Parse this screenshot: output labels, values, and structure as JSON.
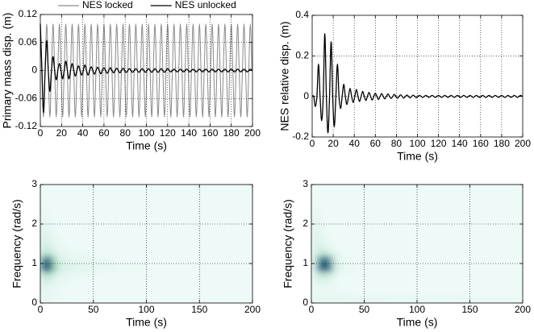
{
  "chart_data": [
    {
      "type": "line",
      "xlabel": "Time (s)",
      "ylabel": "Primary mass disp. (m)",
      "legend": "top",
      "grid": true,
      "xlim": [
        0,
        200
      ],
      "ylim": [
        -0.12,
        0.12
      ],
      "xticks": [
        0,
        20,
        40,
        60,
        80,
        100,
        120,
        140,
        160,
        180,
        200
      ],
      "yticks": [
        -0.12,
        -0.06,
        0,
        0.06,
        0.12
      ],
      "x": [
        0,
        1.5,
        3,
        4.5,
        6,
        7.5,
        9,
        10.5,
        12,
        13.5,
        15,
        16.5,
        18,
        19.5,
        21,
        22.5,
        24,
        25.5,
        27,
        28.5,
        30,
        31.5,
        33,
        34.5,
        36,
        37.5,
        39,
        40.5,
        42,
        43.5,
        45,
        46.5,
        48,
        49.5,
        51,
        52.5,
        54,
        55.5,
        57,
        58.5,
        60,
        61.5,
        63,
        64.5,
        66,
        67.5,
        69,
        70.5,
        72,
        73.5,
        75,
        76.5,
        78,
        79.5,
        81,
        82.5,
        84,
        85.5,
        87,
        88.5,
        90,
        91.5,
        93,
        94.5,
        96,
        97.5,
        99,
        100.5,
        102,
        103.5,
        105,
        106.5,
        108,
        109.5,
        111,
        112.5,
        114,
        115.5,
        117,
        118.5,
        120,
        121.5,
        123,
        124.5,
        126,
        127.5,
        129,
        130.5,
        132,
        133.5,
        135,
        136.5,
        138,
        139.5,
        141,
        142.5,
        144,
        145.5,
        147,
        148.5,
        150,
        151.5,
        153,
        154.5,
        156,
        157.5,
        159,
        160.5,
        162,
        163.5,
        165,
        166.5,
        168,
        169.5,
        171,
        172.5,
        174,
        175.5,
        177,
        178.5,
        180,
        181.5,
        183,
        184.5,
        186,
        187.5,
        189,
        190.5,
        192,
        193.5,
        195,
        196.5,
        198,
        199.5
      ],
      "series": [
        {
          "name": "NES locked",
          "color": "#8a8a8a",
          "values": [
            0.1,
            0,
            -0.1,
            0,
            0.1,
            0,
            -0.1,
            0,
            0.1,
            0,
            -0.1,
            0,
            0.1,
            0,
            -0.1,
            0,
            0.1,
            0,
            -0.1,
            0,
            0.1,
            0,
            -0.1,
            0,
            0.1,
            0,
            -0.1,
            0,
            0.1,
            0,
            -0.1,
            0,
            0.1,
            0,
            -0.1,
            0,
            0.1,
            0,
            -0.1,
            0,
            0.1,
            0,
            -0.1,
            0,
            0.1,
            0,
            -0.1,
            0,
            0.1,
            0,
            -0.1,
            0,
            0.1,
            0,
            -0.1,
            0,
            0.1,
            0,
            -0.1,
            0,
            0.1,
            0,
            -0.1,
            0,
            0.1,
            0,
            -0.1,
            0,
            0.1,
            0,
            -0.1,
            0,
            0.1,
            0,
            -0.1,
            0,
            0.1,
            0,
            -0.1,
            0,
            0.1,
            0,
            -0.1,
            0,
            0.1,
            0,
            -0.1,
            0,
            0.1,
            0,
            -0.1,
            0,
            0.1,
            0,
            -0.1,
            0,
            0.1,
            0,
            -0.1,
            0,
            0.1,
            0,
            -0.1,
            0,
            0.1,
            0,
            -0.1,
            0,
            0.1,
            0,
            -0.1,
            0,
            0.1,
            0,
            -0.1,
            0,
            0.1,
            0,
            -0.1,
            0,
            0.1,
            0,
            -0.1,
            0,
            0.1,
            0,
            -0.1,
            0,
            0.1,
            0,
            -0.1,
            0,
            0.1,
            0
          ]
        },
        {
          "name": "NES unlocked",
          "color": "#000000",
          "values": [
            0.1,
            0,
            -0.09,
            0,
            0.065,
            0,
            -0.045,
            0,
            0.03,
            0,
            -0.02,
            0,
            0.015,
            0,
            -0.018,
            0,
            0.02,
            0,
            -0.018,
            0,
            0.015,
            0,
            -0.012,
            0,
            0.01,
            0,
            -0.01,
            0,
            0.012,
            0,
            -0.01,
            0,
            0.008,
            0,
            -0.008,
            0,
            0.007,
            0,
            -0.007,
            0,
            0.006,
            0,
            -0.006,
            0,
            0.006,
            0,
            -0.005,
            0,
            0.005,
            0,
            -0.005,
            0,
            0.005,
            0,
            -0.004,
            0,
            0.004,
            0,
            -0.004,
            0,
            0.004,
            0,
            -0.004,
            0,
            0.004,
            0,
            -0.004,
            0,
            0.004,
            0,
            -0.004,
            0,
            0.004,
            0,
            -0.004,
            0,
            0.004,
            0,
            -0.004,
            0,
            0.004,
            0,
            -0.003,
            0,
            0.003,
            0,
            -0.003,
            0,
            0.003,
            0,
            -0.003,
            0,
            0.003,
            0,
            -0.003,
            0,
            0.003,
            0,
            -0.003,
            0,
            0.003,
            0,
            -0.003,
            0,
            0.003,
            0,
            -0.003,
            0,
            0.003,
            0,
            -0.003,
            0,
            0.003,
            0,
            -0.003,
            0,
            0.003,
            0,
            -0.003,
            0,
            0.003,
            0,
            -0.003,
            0,
            0.003,
            0,
            -0.003,
            0,
            0.003,
            0,
            -0.003,
            0,
            0.003,
            0
          ]
        }
      ]
    },
    {
      "type": "line",
      "xlabel": "Time (s)",
      "ylabel": "NES relative disp. (m)",
      "grid": true,
      "xlim": [
        0,
        200
      ],
      "ylim": [
        -0.2,
        0.4
      ],
      "xticks": [
        0,
        20,
        40,
        60,
        80,
        100,
        120,
        140,
        160,
        180,
        200
      ],
      "yticks": [
        -0.2,
        0,
        0.2,
        0.4
      ],
      "x": [
        0,
        1.5,
        3,
        4.5,
        6,
        7.5,
        9,
        10.5,
        12,
        13.5,
        15,
        16.5,
        18,
        19.5,
        21,
        22.5,
        24,
        25.5,
        27,
        28.5,
        30,
        31.5,
        33,
        34.5,
        36,
        37.5,
        39,
        40.5,
        42,
        43.5,
        45,
        46.5,
        48,
        49.5,
        51,
        52.5,
        54,
        55.5,
        57,
        58.5,
        60,
        61.5,
        63,
        64.5,
        66,
        67.5,
        69,
        70.5,
        72,
        73.5,
        75,
        76.5,
        78,
        79.5,
        81,
        82.5,
        84,
        85.5,
        87,
        88.5,
        90,
        91.5,
        93,
        94.5,
        96,
        97.5,
        99,
        100.5,
        102,
        103.5,
        105,
        106.5,
        108,
        109.5,
        111,
        112.5,
        114,
        115.5,
        117,
        118.5,
        120,
        121.5,
        123,
        124.5,
        126,
        127.5,
        129,
        130.5,
        132,
        133.5,
        135,
        136.5,
        138,
        139.5,
        141,
        142.5,
        144,
        145.5,
        147,
        148.5,
        150,
        151.5,
        153,
        154.5,
        156,
        157.5,
        159,
        160.5,
        162,
        163.5,
        165,
        166.5,
        168,
        169.5,
        171,
        172.5,
        174,
        175.5,
        177,
        178.5,
        180,
        181.5,
        183,
        184.5,
        186,
        187.5,
        189,
        190.5,
        192,
        193.5,
        195,
        196.5,
        198,
        199.5
      ],
      "series": [
        {
          "color": "#000000",
          "values": [
            0,
            0,
            -0.05,
            0,
            0.16,
            0,
            -0.12,
            0,
            0.31,
            0,
            -0.18,
            0,
            0.27,
            0,
            -0.15,
            0,
            0.16,
            0,
            -0.06,
            0,
            0.06,
            0,
            -0.04,
            0,
            0.04,
            0,
            -0.03,
            0,
            0.035,
            0,
            -0.025,
            0,
            0.025,
            0,
            -0.02,
            0,
            0.02,
            0,
            -0.018,
            0,
            0.016,
            0,
            -0.015,
            0,
            0.014,
            0,
            -0.012,
            0,
            0.012,
            0,
            -0.01,
            0,
            0.01,
            0,
            -0.009,
            0,
            0.008,
            0,
            -0.008,
            0,
            0.007,
            0,
            -0.007,
            0,
            0.006,
            0,
            -0.006,
            0,
            0.005,
            0,
            -0.005,
            0,
            0.005,
            0,
            -0.005,
            0,
            0.005,
            0,
            -0.005,
            0,
            0.005,
            0,
            -0.005,
            0,
            0.005,
            0,
            -0.005,
            0,
            0.005,
            0,
            -0.005,
            0,
            0.005,
            0,
            -0.005,
            0,
            0.005,
            0,
            -0.005,
            0,
            0.005,
            0,
            -0.005,
            0,
            0.005,
            0,
            -0.005,
            0,
            0.005,
            0,
            -0.005,
            0,
            0.005,
            0,
            -0.005,
            0,
            0.005,
            0,
            -0.005,
            0,
            0.005,
            0,
            -0.005,
            0,
            0.005,
            0,
            -0.005,
            0,
            0.005,
            0,
            -0.005,
            0,
            0.005,
            0
          ]
        }
      ]
    },
    {
      "type": "heatmap",
      "xlabel": "Time (s)",
      "ylabel": "Frequency (rad/s)",
      "grid": true,
      "xlim": [
        0,
        200
      ],
      "ylim": [
        0,
        3
      ],
      "xticks": [
        0,
        50,
        100,
        150,
        200
      ],
      "yticks": [
        0,
        1,
        2,
        3
      ],
      "colorscale": [
        "#eefaf8",
        "#c5e8d8",
        "#7cc0aa",
        "#2f6f8f",
        "#0b1e50"
      ],
      "x": [
        2.5,
        7.5,
        12.5,
        17.5,
        22.5,
        27.5,
        35,
        45,
        60,
        80,
        115,
        165
      ],
      "y": [
        0.1,
        0.3,
        0.5,
        0.7,
        0.9,
        1.1,
        1.3,
        1.5,
        1.7,
        1.9,
        2.1,
        2.3,
        2.5,
        2.7,
        2.9
      ],
      "z": [
        [
          0.05,
          0.05,
          0.03,
          0.02,
          0.01,
          0,
          0,
          0,
          0,
          0,
          0,
          0
        ],
        [
          0.05,
          0.05,
          0.03,
          0.02,
          0.01,
          0,
          0,
          0,
          0,
          0,
          0,
          0
        ],
        [
          0.1,
          0.1,
          0.05,
          0.03,
          0.02,
          0.01,
          0,
          0,
          0,
          0,
          0,
          0
        ],
        [
          0.25,
          0.3,
          0.15,
          0.08,
          0.05,
          0.04,
          0.03,
          0.02,
          0,
          0,
          0,
          0
        ],
        [
          0.7,
          0.9,
          0.5,
          0.2,
          0.12,
          0.1,
          0.08,
          0.06,
          0.04,
          0.02,
          0,
          0
        ],
        [
          0.6,
          0.8,
          0.4,
          0.15,
          0.1,
          0.08,
          0.06,
          0.05,
          0.03,
          0.01,
          0,
          0
        ],
        [
          0.25,
          0.25,
          0.12,
          0.06,
          0.04,
          0.03,
          0.02,
          0.01,
          0,
          0,
          0,
          0
        ],
        [
          0.15,
          0.12,
          0.06,
          0.03,
          0.02,
          0,
          0,
          0,
          0,
          0,
          0,
          0
        ],
        [
          0.12,
          0.08,
          0.04,
          0.02,
          0,
          0,
          0,
          0,
          0,
          0,
          0,
          0
        ],
        [
          0.08,
          0.05,
          0.02,
          0,
          0,
          0,
          0,
          0,
          0,
          0,
          0,
          0
        ],
        [
          0.05,
          0.03,
          0.01,
          0,
          0,
          0,
          0,
          0,
          0,
          0,
          0,
          0
        ],
        [
          0.03,
          0.02,
          0,
          0,
          0,
          0,
          0,
          0,
          0,
          0,
          0,
          0
        ],
        [
          0.02,
          0.01,
          0,
          0,
          0,
          0,
          0,
          0,
          0,
          0,
          0,
          0
        ],
        [
          0,
          0,
          0,
          0,
          0,
          0,
          0,
          0,
          0,
          0,
          0,
          0
        ],
        [
          0,
          0,
          0,
          0,
          0,
          0,
          0,
          0,
          0,
          0,
          0,
          0
        ]
      ]
    },
    {
      "type": "heatmap",
      "xlabel": "Time (s)",
      "ylabel": "Frequency (rad/s)",
      "grid": true,
      "xlim": [
        0,
        200
      ],
      "ylim": [
        0,
        3
      ],
      "xticks": [
        0,
        50,
        100,
        150,
        200
      ],
      "yticks": [
        0,
        1,
        2,
        3
      ],
      "colorscale": [
        "#eefaf8",
        "#c5e8d8",
        "#7cc0aa",
        "#2f6f8f",
        "#0b1e50"
      ],
      "x": [
        2.5,
        7.5,
        12.5,
        17.5,
        22.5,
        27.5,
        35,
        45,
        60,
        80,
        115,
        165
      ],
      "y": [
        0.1,
        0.3,
        0.5,
        0.7,
        0.9,
        1.1,
        1.3,
        1.5,
        1.7,
        1.9,
        2.1,
        2.3,
        2.5,
        2.7,
        2.9
      ],
      "z": [
        [
          0.03,
          0.05,
          0.06,
          0.06,
          0.06,
          0.06,
          0.05,
          0.05,
          0.05,
          0.04,
          0.04,
          0.03
        ],
        [
          0.02,
          0.03,
          0.03,
          0.02,
          0.02,
          0.01,
          0.01,
          0,
          0,
          0,
          0,
          0
        ],
        [
          0.04,
          0.06,
          0.06,
          0.04,
          0.02,
          0.01,
          0,
          0,
          0,
          0,
          0,
          0
        ],
        [
          0.08,
          0.2,
          0.25,
          0.15,
          0.05,
          0.02,
          0.01,
          0,
          0,
          0,
          0,
          0
        ],
        [
          0.15,
          0.7,
          0.9,
          0.7,
          0.2,
          0.06,
          0.03,
          0.01,
          0,
          0,
          0,
          0
        ],
        [
          0.12,
          0.6,
          0.8,
          0.6,
          0.15,
          0.05,
          0.02,
          0.01,
          0,
          0,
          0,
          0
        ],
        [
          0.1,
          0.2,
          0.2,
          0.12,
          0.04,
          0.02,
          0,
          0,
          0,
          0,
          0,
          0
        ],
        [
          0.1,
          0.1,
          0.06,
          0.03,
          0.01,
          0,
          0,
          0,
          0,
          0,
          0,
          0
        ],
        [
          0.1,
          0.08,
          0.04,
          0.02,
          0,
          0,
          0,
          0,
          0,
          0,
          0,
          0
        ],
        [
          0.08,
          0.06,
          0.02,
          0,
          0,
          0,
          0,
          0,
          0,
          0,
          0,
          0
        ],
        [
          0.06,
          0.04,
          0.01,
          0,
          0,
          0,
          0,
          0,
          0,
          0,
          0,
          0
        ],
        [
          0.04,
          0.02,
          0,
          0,
          0,
          0,
          0,
          0,
          0,
          0,
          0,
          0
        ],
        [
          0.03,
          0.01,
          0,
          0,
          0,
          0,
          0,
          0,
          0,
          0,
          0,
          0
        ],
        [
          0.01,
          0,
          0,
          0,
          0,
          0,
          0,
          0,
          0,
          0,
          0,
          0
        ],
        [
          0,
          0,
          0,
          0,
          0,
          0,
          0,
          0,
          0,
          0,
          0,
          0
        ]
      ]
    }
  ]
}
